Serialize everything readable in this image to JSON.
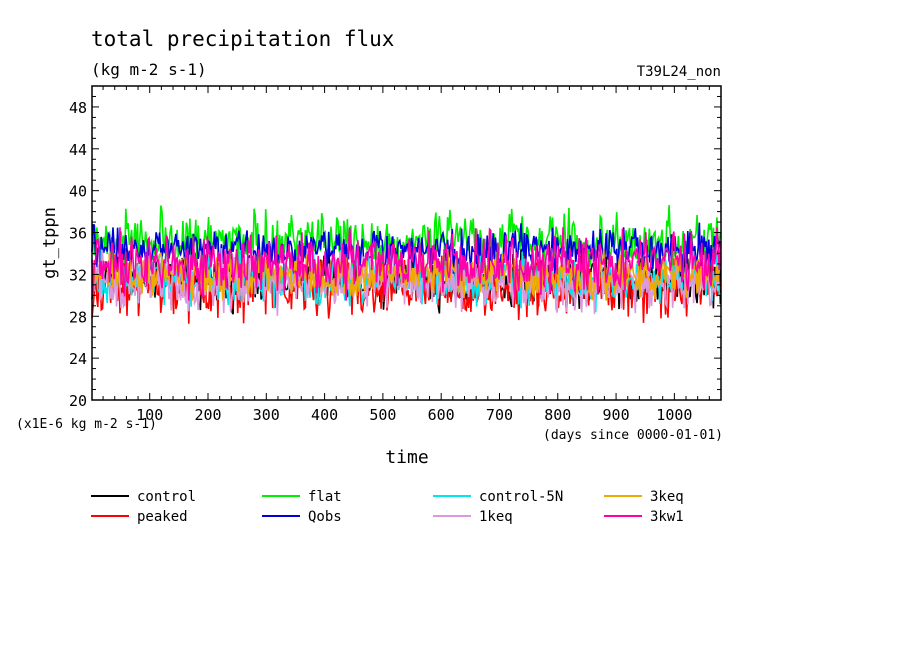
{
  "chart_data": {
    "type": "line",
    "title": "total precipitation flux",
    "subtitle": "(kg m-2 s-1)",
    "run_label": "T39L24_non",
    "ylabel": "gt_tppn",
    "xlabel": "time",
    "y_unit_note": "(x1E-6 kg m-2 s-1)",
    "x_unit_note": "(days since 0000-01-01)",
    "xlim": [
      1,
      1080
    ],
    "ylim": [
      20,
      50
    ],
    "x_ticks": [
      100,
      200,
      300,
      400,
      500,
      600,
      700,
      800,
      900,
      1000
    ],
    "y_ticks": [
      20,
      24,
      28,
      32,
      36,
      40,
      44,
      48
    ],
    "grid": false,
    "legend_position": "bottom",
    "series": [
      {
        "name": "control",
        "color": "#000000",
        "mean": 31.5,
        "amp": 1.6,
        "min": 28.2,
        "max": 34.5,
        "seed": 11
      },
      {
        "name": "peaked",
        "color": "#ff0000",
        "mean": 30.8,
        "amp": 1.7,
        "min": 26.8,
        "max": 34.0,
        "seed": 23
      },
      {
        "name": "flat",
        "color": "#00ee00",
        "mean": 35.2,
        "amp": 1.6,
        "min": 32.0,
        "max": 40.5,
        "seed": 37
      },
      {
        "name": "Qobs",
        "color": "#0000dd",
        "mean": 34.4,
        "amp": 1.3,
        "min": 31.5,
        "max": 37.5,
        "seed": 41
      },
      {
        "name": "control-5N",
        "color": "#00e5ee",
        "mean": 31.6,
        "amp": 1.5,
        "min": 28.0,
        "max": 35.0,
        "seed": 53
      },
      {
        "name": "1keq",
        "color": "#dd99dd",
        "mean": 31.3,
        "amp": 1.6,
        "min": 27.5,
        "max": 34.5,
        "seed": 67
      },
      {
        "name": "3keq",
        "color": "#eeaa00",
        "mean": 31.9,
        "amp": 1.3,
        "min": 29.5,
        "max": 35.0,
        "seed": 79
      },
      {
        "name": "3kw1",
        "color": "#ff00aa",
        "mean": 33.0,
        "amp": 1.8,
        "min": 29.5,
        "max": 36.5,
        "seed": 83
      }
    ]
  }
}
